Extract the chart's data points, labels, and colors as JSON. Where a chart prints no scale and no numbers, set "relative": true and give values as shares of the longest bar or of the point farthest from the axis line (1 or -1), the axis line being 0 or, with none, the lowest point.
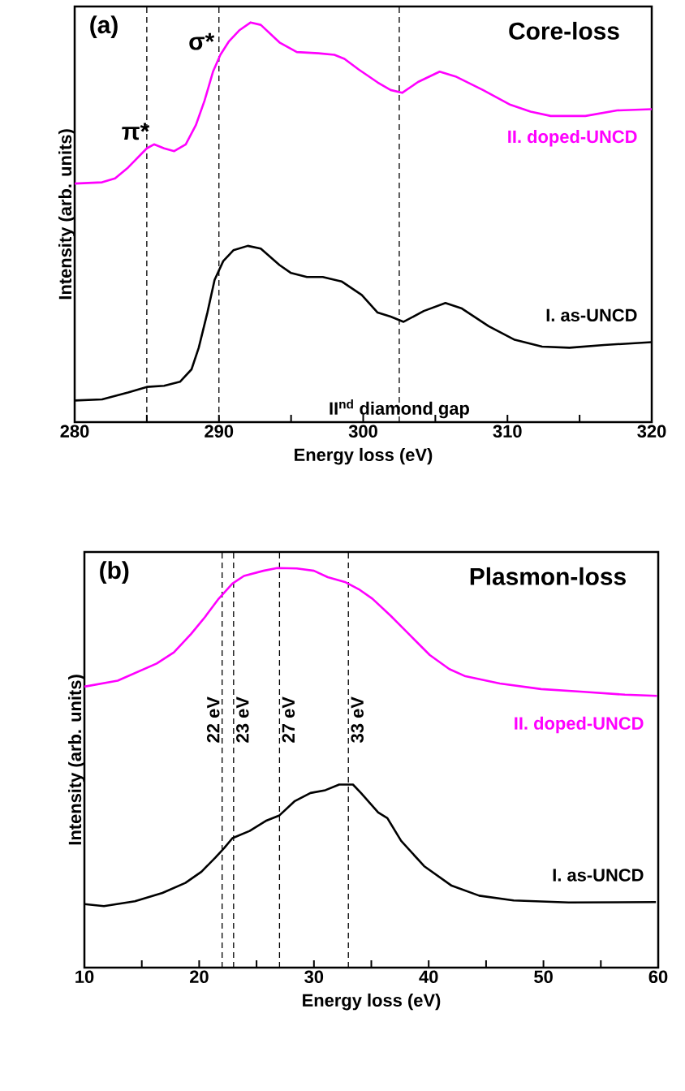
{
  "chart_data": [
    {
      "type": "line",
      "relative": true,
      "xlabel": "Energy loss (eV)",
      "ylabel": "Intensity (arb. units)",
      "xlim": [
        280,
        320
      ],
      "xticks": [
        280,
        {
          "value": 285,
          "label": null
        },
        290,
        {
          "value": 295,
          "label": null
        },
        300,
        {
          "value": 305,
          "label": null
        },
        310,
        {
          "value": 315,
          "label": null
        },
        320
      ],
      "series": [
        {
          "name": "II. doped-UNCD",
          "color": "#ff00ff",
          "x": [
            280,
            281.9,
            282.8,
            283.7,
            285.0,
            285.5,
            286.2,
            286.9,
            287.7,
            288.4,
            289.0,
            289.6,
            290.1,
            290.7,
            291.4,
            292.2,
            292.9,
            294.2,
            295.4,
            296.9,
            298.0,
            298.7,
            299.7,
            301.0,
            301.9,
            302.7,
            303.8,
            305.3,
            306.4,
            308.3,
            310.2,
            311.6,
            313.0,
            315.4,
            317.6,
            320.0
          ],
          "values": [
            0.597,
            0.6,
            0.61,
            0.637,
            0.685,
            0.695,
            0.685,
            0.678,
            0.695,
            0.743,
            0.804,
            0.878,
            0.919,
            0.953,
            0.98,
            1.0,
            0.994,
            0.95,
            0.926,
            0.923,
            0.919,
            0.909,
            0.882,
            0.85,
            0.831,
            0.824,
            0.851,
            0.877,
            0.865,
            0.831,
            0.794,
            0.777,
            0.766,
            0.766,
            0.78,
            0.783
          ]
        },
        {
          "name": "I. as-UNCD",
          "color": "#000000",
          "x": [
            280,
            281.9,
            283.7,
            285.0,
            286.2,
            287.3,
            288.1,
            288.6,
            289.2,
            289.7,
            290.3,
            291.0,
            292.0,
            292.9,
            294.2,
            295.0,
            296.1,
            297.2,
            298.5,
            299.9,
            301.0,
            301.9,
            302.8,
            304.2,
            305.7,
            306.8,
            308.7,
            310.5,
            312.4,
            314.3,
            316.7,
            320.0
          ],
          "values": [
            0.054,
            0.057,
            0.074,
            0.088,
            0.091,
            0.101,
            0.132,
            0.186,
            0.274,
            0.356,
            0.403,
            0.43,
            0.441,
            0.434,
            0.393,
            0.373,
            0.363,
            0.363,
            0.352,
            0.318,
            0.274,
            0.264,
            0.251,
            0.278,
            0.298,
            0.285,
            0.24,
            0.206,
            0.189,
            0.186,
            0.193,
            0.2
          ]
        }
      ],
      "ref_lines": [
        {
          "axis": "x",
          "value": 285,
          "line_style": "dashed"
        },
        {
          "axis": "x",
          "value": 290,
          "line_style": "dashed"
        },
        {
          "axis": "x",
          "value": 302.5,
          "line_style": "dashed",
          "label": "II$^{nd}$ diamond gap"
        }
      ],
      "annotations": [
        "(a)",
        "Core-loss",
        {
          "text": "π*",
          "x": 285.5,
          "y": 0.695
        },
        {
          "text": "σ*",
          "x": 290,
          "y": 0.92
        }
      ]
    },
    {
      "type": "line",
      "relative": true,
      "xlabel": "Energy loss (eV)",
      "ylabel": "Intensity (arb. units)",
      "xlim": [
        10,
        60
      ],
      "xticks": [
        10,
        {
          "value": 15,
          "label": null
        },
        20,
        {
          "value": 25,
          "label": null
        },
        30,
        {
          "value": 35,
          "label": null
        },
        40,
        {
          "value": 45,
          "label": null
        },
        50,
        {
          "value": 55,
          "label": null
        },
        60
      ],
      "series": [
        {
          "name": "II. doped-UNCD",
          "color": "#ff00ff",
          "x": [
            10.0,
            12.9,
            16.3,
            17.8,
            19.3,
            20.5,
            21.7,
            22.9,
            23.9,
            25.6,
            26.8,
            28.5,
            30.0,
            31.2,
            32.7,
            33.9,
            35.1,
            36.7,
            38.4,
            40.1,
            41.8,
            43.2,
            46.2,
            49.8,
            53.5,
            57.1,
            59.9
          ],
          "values": [
            0.703,
            0.718,
            0.761,
            0.789,
            0.835,
            0.877,
            0.923,
            0.961,
            0.98,
            0.993,
            1.0,
            0.999,
            0.993,
            0.977,
            0.965,
            0.947,
            0.923,
            0.88,
            0.831,
            0.782,
            0.747,
            0.729,
            0.711,
            0.697,
            0.69,
            0.683,
            0.68
          ]
        },
        {
          "name": "I. as-UNCD",
          "color": "#000000",
          "x": [
            10.0,
            11.7,
            14.4,
            16.8,
            18.8,
            20.2,
            21.4,
            22.2,
            22.9,
            24.4,
            25.8,
            27.0,
            28.3,
            29.7,
            31.0,
            32.2,
            33.4,
            34.1,
            35.6,
            36.4,
            37.6,
            39.6,
            42.0,
            44.4,
            47.4,
            52.2,
            59.8
          ],
          "values": [
            0.159,
            0.154,
            0.166,
            0.187,
            0.212,
            0.24,
            0.275,
            0.3,
            0.324,
            0.342,
            0.367,
            0.381,
            0.416,
            0.437,
            0.444,
            0.458,
            0.458,
            0.437,
            0.388,
            0.374,
            0.317,
            0.254,
            0.205,
            0.18,
            0.168,
            0.163,
            0.164
          ]
        }
      ],
      "ref_lines": [
        {
          "axis": "x",
          "value": 22,
          "line_style": "dashed",
          "label": "22 eV"
        },
        {
          "axis": "x",
          "value": 23,
          "line_style": "dashed",
          "label": "23 eV"
        },
        {
          "axis": "x",
          "value": 27,
          "line_style": "dashed",
          "label": "27 eV"
        },
        {
          "axis": "x",
          "value": 33,
          "line_style": "dashed",
          "label": "33 eV"
        }
      ],
      "annotations": [
        "(b)",
        "Plasmon-loss"
      ]
    }
  ]
}
